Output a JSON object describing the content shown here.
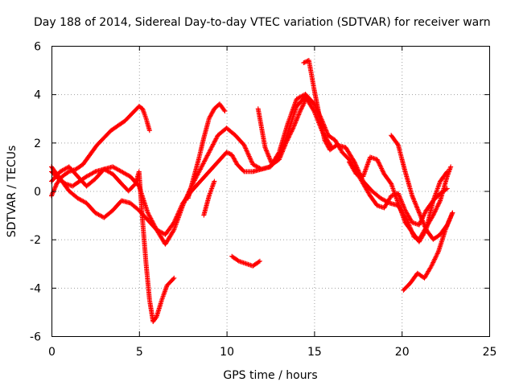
{
  "chart_data": {
    "type": "scatter",
    "title": "Day 188 of 2014, Sidereal Day-to-day VTEC variation (SDTVAR) for receiver warn",
    "xlabel": "GPS time / hours",
    "ylabel": "SDTVAR / TECUs",
    "xlim": [
      0,
      25
    ],
    "ylim": [
      -6,
      6
    ],
    "x_ticks": [
      0,
      5,
      10,
      15,
      20,
      25
    ],
    "y_ticks": [
      -6,
      -4,
      -2,
      0,
      2,
      4,
      6
    ],
    "x_tick_labels": [
      "0",
      "5",
      "10",
      "15",
      "20",
      "25"
    ],
    "y_tick_labels": [
      "-6",
      "-4",
      "-2",
      "0",
      "2",
      "4",
      "6"
    ],
    "grid": true,
    "marker": "+",
    "color": "#ff0000",
    "series": [
      {
        "name": "",
        "x": [
          0.0,
          0.3,
          0.6,
          1.0,
          1.4,
          1.8,
          2.2,
          2.6,
          3.0,
          3.4,
          3.8,
          4.2,
          4.6,
          5.0,
          5.2,
          5.4,
          5.6
        ],
        "y": [
          -0.2,
          0.3,
          0.6,
          0.8,
          0.9,
          1.1,
          1.5,
          1.9,
          2.2,
          2.5,
          2.7,
          2.9,
          3.2,
          3.5,
          3.4,
          3.0,
          2.5
        ]
      },
      {
        "name": "",
        "x": [
          0.0,
          0.4,
          0.8,
          1.2,
          1.6,
          2.0,
          2.5,
          3.0,
          3.5,
          4.0,
          4.4,
          4.8,
          5.0,
          5.2,
          5.4,
          5.6,
          5.8,
          6.0,
          6.3,
          6.6,
          7.0
        ],
        "y": [
          0.8,
          0.5,
          0.3,
          0.2,
          0.4,
          0.6,
          0.8,
          0.9,
          0.7,
          0.3,
          0.0,
          0.3,
          0.8,
          -1.2,
          -3.0,
          -4.5,
          -5.4,
          -5.2,
          -4.5,
          -3.9,
          -3.6
        ]
      },
      {
        "name": "",
        "x": [
          0.0,
          0.5,
          1.0,
          1.5,
          2.0,
          2.5,
          3.0,
          3.5,
          4.0,
          4.5,
          5.0,
          5.5,
          6.0,
          6.5,
          7.0,
          7.5,
          8.0,
          8.5,
          9.0,
          9.5,
          10.0,
          10.5,
          11.0,
          11.5,
          12.0,
          12.5,
          13.0,
          13.5,
          14.0,
          14.5,
          15.0,
          15.5,
          16.0
        ],
        "y": [
          1.0,
          0.5,
          0.0,
          -0.3,
          -0.5,
          -0.9,
          -1.1,
          -0.8,
          -0.4,
          -0.5,
          -0.8,
          -1.2,
          -1.6,
          -2.2,
          -1.6,
          -0.6,
          0.2,
          0.9,
          1.6,
          2.3,
          2.6,
          2.3,
          1.9,
          1.1,
          0.9,
          1.0,
          1.4,
          2.4,
          3.5,
          3.9,
          3.3,
          2.4,
          1.8
        ]
      },
      {
        "name": "",
        "x": [
          0.0,
          0.5,
          1.0,
          1.5,
          2.0,
          2.5,
          3.0,
          3.5,
          4.0,
          4.5,
          5.0,
          5.5,
          6.0,
          6.5,
          7.0,
          7.5,
          8.0,
          8.5,
          9.0,
          9.5,
          10.0,
          10.3,
          10.6,
          11.0,
          11.5,
          12.0,
          12.5,
          13.0,
          13.5,
          14.0,
          14.5,
          15.0
        ],
        "y": [
          0.4,
          0.8,
          1.0,
          0.6,
          0.2,
          0.5,
          0.9,
          1.0,
          0.8,
          0.6,
          0.2,
          -0.9,
          -1.6,
          -1.8,
          -1.3,
          -0.5,
          0.0,
          0.4,
          0.8,
          1.2,
          1.6,
          1.5,
          1.1,
          0.8,
          0.8,
          0.9,
          1.0,
          1.6,
          2.8,
          3.8,
          4.0,
          3.6
        ]
      },
      {
        "name": "",
        "x": [
          7.8,
          8.1,
          8.4,
          8.7,
          9.0,
          9.3,
          9.6,
          9.9
        ],
        "y": [
          -0.3,
          0.5,
          1.3,
          2.2,
          3.0,
          3.4,
          3.6,
          3.3
        ]
      },
      {
        "name": "",
        "x": [
          8.7,
          9.0,
          9.3
        ],
        "y": [
          -1.0,
          -0.2,
          0.4
        ]
      },
      {
        "name": "",
        "x": [
          10.3,
          10.7,
          11.1,
          11.5,
          11.9
        ],
        "y": [
          -2.7,
          -2.9,
          -3.0,
          -3.1,
          -2.9
        ]
      },
      {
        "name": "",
        "x": [
          11.8,
          12.2,
          12.6,
          13.0,
          13.4,
          13.8,
          14.2,
          14.6,
          15.0,
          15.4,
          15.8,
          16.2,
          16.6,
          17.0,
          17.4,
          17.8,
          18.2,
          18.6,
          19.0,
          19.4,
          19.8,
          20.2,
          20.6,
          21.0,
          21.4,
          21.8,
          22.2,
          22.6
        ],
        "y": [
          3.4,
          1.8,
          1.1,
          1.3,
          2.0,
          2.6,
          3.3,
          3.9,
          3.6,
          3.0,
          2.3,
          2.1,
          1.6,
          1.3,
          0.8,
          0.3,
          -0.2,
          -0.6,
          -0.7,
          -0.2,
          -0.1,
          -0.8,
          -1.3,
          -1.4,
          -0.8,
          -0.4,
          -0.1,
          0.1
        ]
      },
      {
        "name": "",
        "x": [
          14.4,
          14.7,
          15.0,
          15.3,
          15.6,
          15.9,
          16.3,
          16.8,
          17.3,
          17.8,
          18.3,
          18.8,
          19.3,
          19.8,
          20.3,
          20.7,
          21.0,
          21.4,
          21.8,
          22.2,
          22.6,
          22.8
        ],
        "y": [
          5.3,
          5.4,
          4.2,
          3.1,
          2.1,
          1.7,
          1.9,
          1.8,
          1.2,
          0.4,
          0.0,
          -0.3,
          -0.5,
          -0.6,
          -1.2,
          -1.9,
          -2.0,
          -1.5,
          -1.0,
          -0.4,
          0.6,
          1.0
        ]
      },
      {
        "name": "",
        "x": [
          17.0,
          17.4,
          17.8,
          18.2,
          18.6,
          19.0,
          19.4,
          19.8,
          20.2,
          20.6,
          21.0,
          21.4,
          21.8,
          22.2,
          22.6
        ],
        "y": [
          1.2,
          0.7,
          0.6,
          1.4,
          1.3,
          0.7,
          0.3,
          -0.5,
          -1.3,
          -1.7,
          -2.1,
          -1.6,
          -0.4,
          0.4,
          0.8
        ]
      },
      {
        "name": "",
        "x": [
          19.4,
          19.8,
          20.2,
          20.6,
          21.0,
          21.4,
          21.8,
          22.2,
          22.6,
          22.9
        ],
        "y": [
          2.3,
          1.9,
          0.8,
          -0.2,
          -0.9,
          -1.6,
          -2.0,
          -1.8,
          -1.4,
          -0.9
        ]
      },
      {
        "name": "",
        "x": [
          20.1,
          20.5,
          20.9,
          21.3,
          21.7,
          22.1,
          22.5,
          22.9
        ],
        "y": [
          -4.1,
          -3.8,
          -3.4,
          -3.6,
          -3.1,
          -2.5,
          -1.6,
          -0.9
        ]
      }
    ]
  }
}
